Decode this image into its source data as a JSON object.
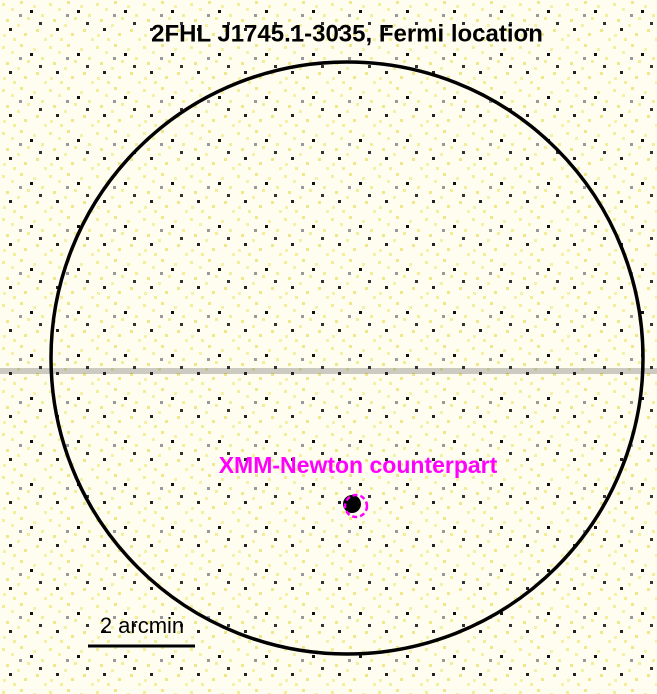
{
  "title": "2FHL J1745.1-3035, Fermi location",
  "annotation": "XMM-Newton counterpart",
  "scale_bar": "2 arcmin"
}
